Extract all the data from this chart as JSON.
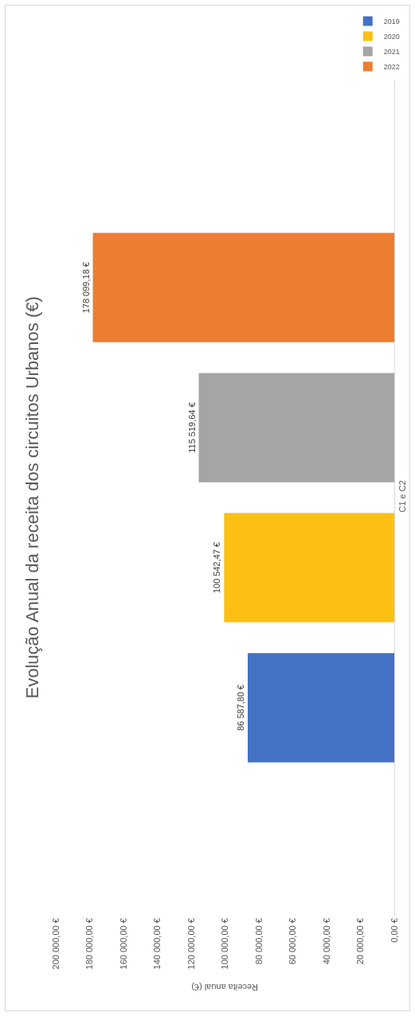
{
  "chart_data": {
    "type": "bar",
    "orientation": "horizontal",
    "title": "Evolução Anual da receita dos circuitos Urbanos (€)",
    "xlabel": "Receita anual (€)",
    "categories": [
      "C1 e C2"
    ],
    "series": [
      {
        "name": "2019",
        "color": "#4472c4",
        "values": [
          86587.8
        ],
        "value_labels": [
          "86 587,80 €"
        ]
      },
      {
        "name": "2020",
        "color": "#fbc013",
        "values": [
          100542.47
        ],
        "value_labels": [
          "100 542,47 €"
        ]
      },
      {
        "name": "2021",
        "color": "#a5a5a5",
        "values": [
          115519.64
        ],
        "value_labels": [
          "115 519,64 €"
        ]
      },
      {
        "name": "2022",
        "color": "#ed7d31",
        "values": [
          178099.18
        ],
        "value_labels": [
          "178 099,18 €"
        ]
      }
    ],
    "xlim": [
      200000,
      0
    ],
    "xticks": [
      {
        "value": 0,
        "label": "0,00 €"
      },
      {
        "value": 20000,
        "label": "20 000,00 €"
      },
      {
        "value": 40000,
        "label": "40 000,00 €"
      },
      {
        "value": 60000,
        "label": "60 000,00 €"
      },
      {
        "value": 80000,
        "label": "80 000,00 €"
      },
      {
        "value": 100000,
        "label": "100 000,00 €"
      },
      {
        "value": 120000,
        "label": "120 000,00 €"
      },
      {
        "value": 140000,
        "label": "140 000,00 €"
      },
      {
        "value": 160000,
        "label": "160 000,00 €"
      },
      {
        "value": 180000,
        "label": "180 000,00 €"
      },
      {
        "value": 200000,
        "label": "200 000,00 €"
      }
    ],
    "grid": false,
    "legend": "top right"
  }
}
